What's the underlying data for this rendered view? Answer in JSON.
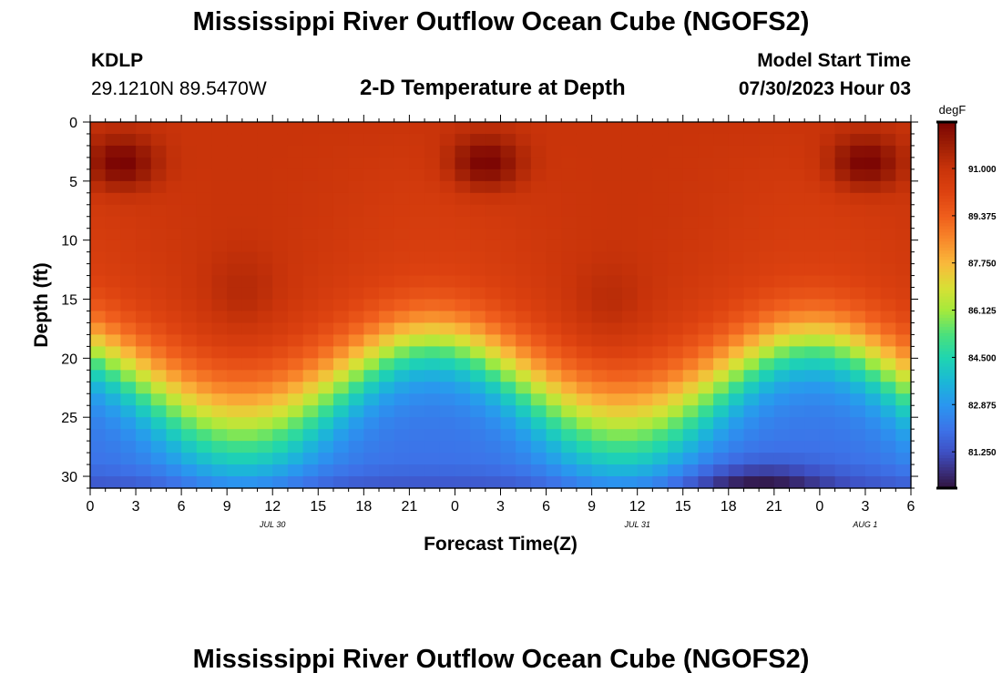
{
  "page_title": "Mississippi River Outflow Ocean Cube (NGOFS2)",
  "footer_title": "Mississippi River Outflow Ocean Cube (NGOFS2)",
  "station": {
    "name": "KDLP",
    "coords": "29.1210N  89.5470W"
  },
  "plot_subtitle": "2-D Temperature at Depth",
  "model_start": {
    "label": "Model Start Time",
    "value": "07/30/2023 Hour 03"
  },
  "chart_data": {
    "type": "heatmap",
    "xlabel": "Forecast Time(Z)",
    "ylabel": "Depth (ft)",
    "x_range_hours": [
      0,
      54
    ],
    "y_range_ft": [
      0,
      31
    ],
    "x_ticks": [
      {
        "hour": 0,
        "label": "0"
      },
      {
        "hour": 3,
        "label": "3"
      },
      {
        "hour": 6,
        "label": "6"
      },
      {
        "hour": 9,
        "label": "9"
      },
      {
        "hour": 12,
        "label": "12"
      },
      {
        "hour": 15,
        "label": "15"
      },
      {
        "hour": 18,
        "label": "18"
      },
      {
        "hour": 21,
        "label": "21"
      },
      {
        "hour": 24,
        "label": "0"
      },
      {
        "hour": 27,
        "label": "3"
      },
      {
        "hour": 30,
        "label": "6"
      },
      {
        "hour": 33,
        "label": "9"
      },
      {
        "hour": 36,
        "label": "12"
      },
      {
        "hour": 39,
        "label": "15"
      },
      {
        "hour": 42,
        "label": "18"
      },
      {
        "hour": 45,
        "label": "21"
      },
      {
        "hour": 48,
        "label": "0"
      },
      {
        "hour": 51,
        "label": "3"
      },
      {
        "hour": 54,
        "label": "6"
      }
    ],
    "date_labels": [
      {
        "hour": 12,
        "label": "JUL 30"
      },
      {
        "hour": 36,
        "label": "JUL 31"
      },
      {
        "hour": 51,
        "label": "AUG 1"
      }
    ],
    "y_ticks": [
      0,
      5,
      10,
      15,
      20,
      25,
      30
    ],
    "colorbar": {
      "unit": "degF",
      "min": 80.0,
      "max": 92.6,
      "tick_values": [
        81.25,
        82.875,
        84.5,
        86.125,
        87.75,
        89.375,
        91.0
      ],
      "tick_labels": [
        "81.250",
        "82.875",
        "84.500",
        "86.125",
        "87.750",
        "89.375",
        "91.000"
      ],
      "stops": [
        {
          "v": 80.0,
          "c": "#30123b"
        },
        {
          "v": 80.6,
          "c": "#3a2f7e"
        },
        {
          "v": 81.25,
          "c": "#3e50c4"
        },
        {
          "v": 82.0,
          "c": "#3d72e8"
        },
        {
          "v": 82.875,
          "c": "#2a96f0"
        },
        {
          "v": 83.7,
          "c": "#1bb8d6"
        },
        {
          "v": 84.5,
          "c": "#1fd5b0"
        },
        {
          "v": 85.3,
          "c": "#4be07c"
        },
        {
          "v": 86.125,
          "c": "#a4ea3c"
        },
        {
          "v": 86.9,
          "c": "#d8e035"
        },
        {
          "v": 87.75,
          "c": "#f9b93b"
        },
        {
          "v": 88.6,
          "c": "#f8862a"
        },
        {
          "v": 89.375,
          "c": "#ef5e1c"
        },
        {
          "v": 90.2,
          "c": "#dd4210"
        },
        {
          "v": 91.0,
          "c": "#c9340a"
        },
        {
          "v": 91.8,
          "c": "#9e1f05"
        },
        {
          "v": 92.6,
          "c": "#7a0403"
        }
      ]
    }
  }
}
